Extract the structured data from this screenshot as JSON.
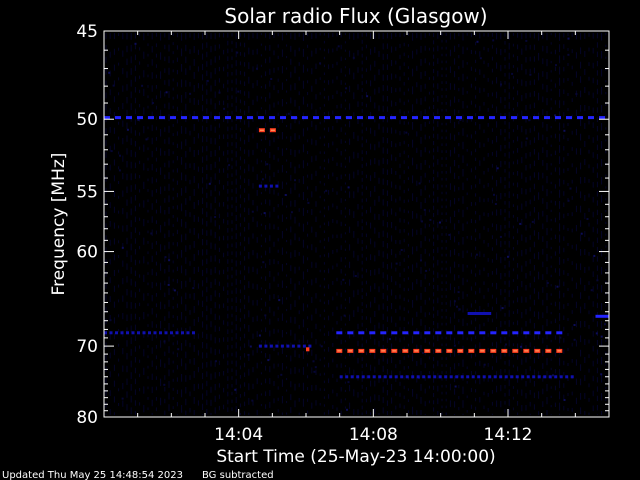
{
  "chart_data": {
    "type": "heatmap",
    "title": "Solar radio Flux (Glasgow)",
    "xlabel": "Start Time (25-May-23 14:00:00)",
    "ylabel": "Frequency [MHz]",
    "x_range_minutes": [
      0,
      15
    ],
    "y_range_mhz": [
      45,
      80
    ],
    "y_scale": "reciprocal",
    "x_ticks": [
      {
        "minute": 4,
        "label": "14:04"
      },
      {
        "minute": 8,
        "label": "14:08"
      },
      {
        "minute": 12,
        "label": "14:12"
      }
    ],
    "y_ticks": [
      {
        "value": 45,
        "label": "45"
      },
      {
        "value": 50,
        "label": "50"
      },
      {
        "value": 55,
        "label": "55"
      },
      {
        "value": 60,
        "label": "60"
      },
      {
        "value": 70,
        "label": "70"
      },
      {
        "value": 80,
        "label": "80"
      }
    ],
    "colors": {
      "background": "#000000",
      "weak": "#1010b0",
      "moderate": "#2424ff",
      "strong": "#ff3c1e",
      "strong_core": "#ffb070"
    },
    "features": [
      {
        "freq_mhz": 49.9,
        "t_start_min": 0.0,
        "t_end_min": 15.0,
        "intensity": "moderate",
        "dashed": true
      },
      {
        "freq_mhz": 50.7,
        "t_start_min": 4.6,
        "t_end_min": 5.3,
        "intensity": "strong",
        "dashed": true
      },
      {
        "freq_mhz": 54.6,
        "t_start_min": 4.6,
        "t_end_min": 5.3,
        "intensity": "weak",
        "dashed": true
      },
      {
        "freq_mhz": 68.4,
        "t_start_min": 6.9,
        "t_end_min": 13.8,
        "intensity": "moderate",
        "dashed": true
      },
      {
        "freq_mhz": 70.6,
        "t_start_min": 6.9,
        "t_end_min": 13.8,
        "intensity": "strong",
        "dashed": true
      },
      {
        "freq_mhz": 68.4,
        "t_start_min": 0.0,
        "t_end_min": 2.7,
        "intensity": "weak",
        "dashed": true
      },
      {
        "freq_mhz": 70.0,
        "t_start_min": 4.6,
        "t_end_min": 6.3,
        "intensity": "weak",
        "dashed": true
      },
      {
        "freq_mhz": 66.5,
        "t_start_min": 14.6,
        "t_end_min": 15.0,
        "intensity": "moderate",
        "dashed": false
      },
      {
        "freq_mhz": 66.2,
        "t_start_min": 10.8,
        "t_end_min": 11.5,
        "intensity": "weak",
        "dashed": false
      },
      {
        "freq_mhz": 70.4,
        "t_start_min": 6.0,
        "t_end_min": 6.1,
        "intensity": "strong",
        "dashed": false
      },
      {
        "freq_mhz": 74.0,
        "t_start_min": 7.0,
        "t_end_min": 14.0,
        "intensity": "weak",
        "dashed": true
      }
    ]
  },
  "footer": {
    "updated": "Updated Thu May 25 14:48:54 2023",
    "note": "BG subtracted"
  }
}
